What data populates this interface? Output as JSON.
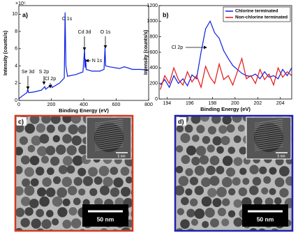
{
  "chart_data": [
    {
      "type": "line",
      "x_label": "Binding Energy (eV)",
      "y_label": "Intensity (counts/s)",
      "y_multiplier": "×10⁵",
      "panel_label": "a)",
      "x": [
        0,
        20,
        50,
        55,
        60,
        100,
        140,
        160,
        165,
        200,
        205,
        250,
        280,
        285,
        290,
        300,
        350,
        395,
        405,
        408,
        412,
        415,
        450,
        500,
        525,
        531,
        535,
        560,
        620,
        650,
        700,
        750,
        800
      ],
      "series": [
        {
          "color": "#0a1ee6",
          "values": [
            0.2,
            0.5,
            0.9,
            1.3,
            0.9,
            1.0,
            1.2,
            1.6,
            1.3,
            1.8,
            1.5,
            2.0,
            2.6,
            10.2,
            4.0,
            2.8,
            3.0,
            3.3,
            5.9,
            3.8,
            4.8,
            3.6,
            3.4,
            3.4,
            3.6,
            6.1,
            4.0,
            3.9,
            3.7,
            3.9,
            3.6,
            3.6,
            3.5
          ]
        }
      ],
      "xlim": [
        0,
        800
      ],
      "xticks": [
        0,
        200,
        400,
        600,
        800
      ],
      "ylim": [
        0,
        11
      ],
      "yticks": [
        0,
        2,
        4,
        6,
        8,
        10
      ],
      "annotations": [
        "Se 3d",
        "S 2p",
        "Cl 2p",
        "C 1s",
        "Cd 3d",
        "N 1s",
        "O 1s"
      ]
    },
    {
      "type": "line",
      "x_label": "Binding Energy (eV)",
      "y_label": "Intensity (counts/s)",
      "panel_label": "b)",
      "legend": "top-right",
      "x": [
        193.4,
        193.8,
        194.2,
        194.6,
        195.0,
        195.4,
        195.8,
        196.2,
        196.6,
        197.0,
        197.4,
        197.8,
        198.2,
        198.6,
        199.0,
        199.4,
        199.8,
        200.2,
        200.6,
        201.0,
        201.4,
        201.8,
        202.2,
        202.6,
        203.0,
        203.4,
        203.8,
        204.2,
        204.6,
        205.0
      ],
      "series": [
        {
          "name": "Chlorine terminated",
          "color": "#0a1ee6",
          "values": [
            180,
            250,
            150,
            300,
            200,
            260,
            170,
            310,
            260,
            600,
            900,
            1000,
            850,
            780,
            620,
            520,
            430,
            380,
            330,
            300,
            290,
            320,
            260,
            350,
            280,
            300,
            260,
            380,
            300,
            400
          ]
        },
        {
          "name": "Non-chlorine terminated",
          "color": "#e61414",
          "values": [
            120,
            300,
            200,
            400,
            250,
            180,
            350,
            220,
            300,
            150,
            420,
            280,
            200,
            450,
            250,
            300,
            180,
            350,
            520,
            260,
            300,
            200,
            380,
            250,
            320,
            180,
            400,
            280,
            350,
            300
          ]
        }
      ],
      "xlim": [
        193.3,
        205
      ],
      "xticks": [
        194,
        196,
        198,
        200,
        202,
        204
      ],
      "ylim": [
        0,
        1200
      ],
      "yticks": [
        0,
        200,
        400,
        600,
        800,
        1000,
        1200
      ],
      "annotations": [
        "Cl 2p"
      ]
    }
  ],
  "images": [
    {
      "label": "c)",
      "inset_scale": "5 nm",
      "scale": "50 nm",
      "border_color": "#d03a22"
    },
    {
      "label": "d)",
      "inset_scale": "5 nm",
      "scale": "50 nm",
      "border_color": "#2020b0"
    }
  ]
}
